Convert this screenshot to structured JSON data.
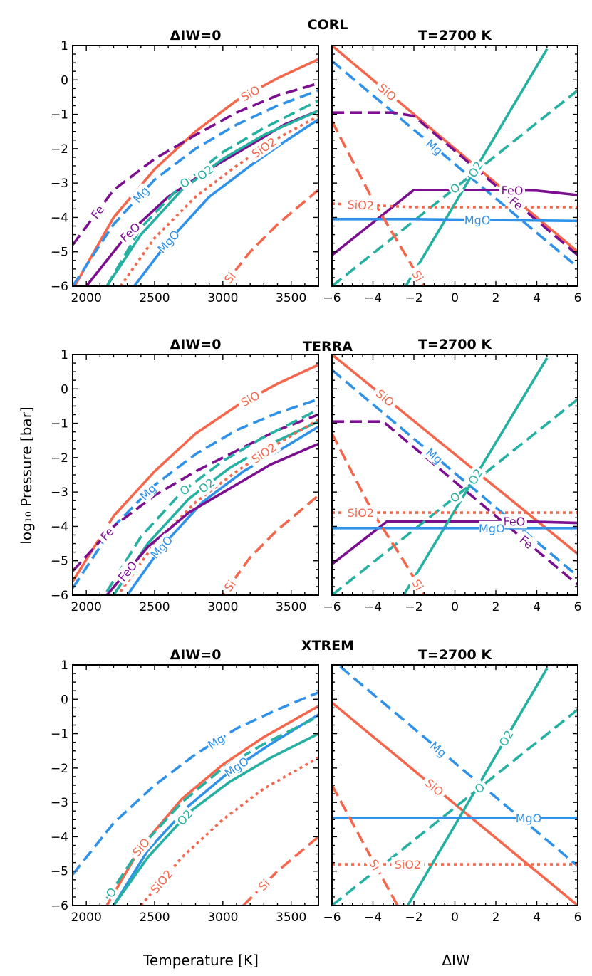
{
  "figure": {
    "ylabel": "log₁₀ Pressure [bar]",
    "xlabel_left": "Temperature [K]",
    "xlabel_right": "ΔIW"
  },
  "colors": {
    "SiO": "#f5674d",
    "SiO2": "#f5674d",
    "Si": "#f5674d",
    "Mg": "#2f92e8",
    "MgO": "#2f92e8",
    "O": "#25b0a1",
    "O2": "#25b0a1",
    "Fe": "#7b0f8f",
    "FeO": "#7b0f8f"
  },
  "chart_data": [
    {
      "group": "CORL",
      "side": "left",
      "type": "line",
      "title": "ΔIW=0",
      "xlabel": "Temperature [K]",
      "ylabel": "log₁₀ Pressure [bar]",
      "xlim": [
        1900,
        3700
      ],
      "ylim": [
        -6,
        1
      ],
      "xticks": [
        2000,
        2500,
        3000,
        3500
      ],
      "yticks": [
        1,
        0,
        -1,
        -2,
        -3,
        -4,
        -5,
        -6
      ],
      "series": [
        {
          "name": "SiO",
          "style": "solid",
          "x": [
            1900,
            2200,
            2500,
            2800,
            3100,
            3400,
            3700
          ],
          "y": [
            -6.1,
            -4.0,
            -2.6,
            -1.5,
            -0.6,
            0.05,
            0.6
          ],
          "label_at": 3200
        },
        {
          "name": "Fe",
          "style": "dashed",
          "x": [
            1900,
            2200,
            2500,
            2800,
            3100,
            3400,
            3700
          ],
          "y": [
            -4.8,
            -3.2,
            -2.3,
            -1.6,
            -0.95,
            -0.45,
            -0.1
          ],
          "label_at": 2080
        },
        {
          "name": "Mg",
          "style": "dashed",
          "x": [
            1900,
            2200,
            2500,
            2800,
            3100,
            3400,
            3700
          ],
          "y": [
            -6.0,
            -4.2,
            -2.9,
            -2.0,
            -1.3,
            -0.75,
            -0.3
          ],
          "label_at": 2400
        },
        {
          "name": "FeO",
          "style": "solid",
          "x": [
            2000,
            2300,
            2600,
            2900,
            3200,
            3450,
            3700
          ],
          "y": [
            -6.0,
            -4.5,
            -3.4,
            -2.6,
            -1.9,
            -1.3,
            -0.9
          ],
          "label_at": 2320
        },
        {
          "name": "O",
          "style": "dashed",
          "x": [
            2150,
            2400,
            2700,
            3000,
            3300,
            3700
          ],
          "y": [
            -6.0,
            -4.3,
            -3.05,
            -2.1,
            -1.4,
            -0.6
          ],
          "label_at": 2720
        },
        {
          "name": "O2",
          "style": "solid",
          "x": [
            2150,
            2400,
            2700,
            3000,
            3300,
            3700
          ],
          "y": [
            -6.0,
            -4.5,
            -3.2,
            -2.3,
            -1.6,
            -0.9
          ],
          "label_at": 2870
        },
        {
          "name": "SiO2",
          "style": "dotted",
          "x": [
            2250,
            2500,
            2800,
            3100,
            3400,
            3700
          ],
          "y": [
            -6.0,
            -4.6,
            -3.4,
            -2.5,
            -1.7,
            -1.05
          ],
          "label_at": 3300
        },
        {
          "name": "MgO",
          "style": "solid",
          "x": [
            2350,
            2600,
            2900,
            3200,
            3450,
            3700
          ],
          "y": [
            -6.0,
            -4.7,
            -3.4,
            -2.5,
            -1.8,
            -1.15
          ],
          "label_at": 2600
        },
        {
          "name": "Si",
          "style": "dashed",
          "x": [
            3000,
            3200,
            3400,
            3700
          ],
          "y": [
            -6.0,
            -5.0,
            -4.2,
            -3.2
          ],
          "label_at": 3050
        }
      ]
    },
    {
      "group": "CORL",
      "side": "right",
      "type": "line",
      "title": "T=2700 K",
      "xlabel": "ΔIW",
      "ylabel": "log₁₀ Pressure [bar]",
      "xlim": [
        -6,
        6
      ],
      "ylim": [
        -6,
        1
      ],
      "xticks": [
        -6,
        -4,
        -2,
        0,
        2,
        4,
        6
      ],
      "yticks": [
        1,
        0,
        -1,
        -2,
        -3,
        -4,
        -5,
        -6
      ],
      "series": [
        {
          "name": "SiO",
          "style": "solid",
          "x": [
            -6,
            6
          ],
          "y": [
            1.0,
            -5.0
          ],
          "label_at": -3.3
        },
        {
          "name": "Mg",
          "style": "dashed",
          "x": [
            -6,
            6
          ],
          "y": [
            0.55,
            -5.45
          ],
          "label_at": -1.0
        },
        {
          "name": "Fe",
          "style": "dashed",
          "x": [
            -6,
            -3,
            -2,
            6
          ],
          "y": [
            -0.95,
            -0.95,
            -1.05,
            -5.1
          ],
          "label_at": 3.0
        },
        {
          "name": "FeO",
          "style": "solid",
          "x": [
            -6,
            -2,
            2,
            4,
            6
          ],
          "y": [
            -5.1,
            -3.2,
            -3.2,
            -3.22,
            -3.35
          ],
          "label_at": 2.8
        },
        {
          "name": "O2",
          "style": "solid",
          "x": [
            -2.4,
            4.5
          ],
          "y": [
            -6.0,
            0.9
          ],
          "label_at": 1.0
        },
        {
          "name": "O",
          "style": "dashed",
          "x": [
            -6,
            6
          ],
          "y": [
            -6.0,
            -0.3
          ],
          "label_at": 0.0
        },
        {
          "name": "SiO2",
          "style": "dotted",
          "x": [
            -6,
            -2,
            6
          ],
          "y": [
            -3.6,
            -3.7,
            -3.7
          ],
          "label_at": -4.6
        },
        {
          "name": "MgO",
          "style": "solid",
          "x": [
            -6,
            -2,
            6
          ],
          "y": [
            -4.05,
            -4.05,
            -4.1
          ],
          "label_at": 1.1
        },
        {
          "name": "Si",
          "style": "dashed",
          "x": [
            -6,
            -4,
            -2.5,
            -1.5
          ],
          "y": [
            -1.2,
            -3.5,
            -5.0,
            -6.0
          ],
          "label_at": -1.8
        }
      ]
    },
    {
      "group": "TERRA",
      "side": "left",
      "type": "line",
      "title": "ΔIW=0",
      "xlabel": "Temperature [K]",
      "ylabel": "log₁₀ Pressure [bar]",
      "xlim": [
        1900,
        3700
      ],
      "ylim": [
        -6,
        1
      ],
      "xticks": [
        2000,
        2500,
        3000,
        3500
      ],
      "yticks": [
        1,
        0,
        -1,
        -2,
        -3,
        -4,
        -5,
        -6
      ],
      "series": [
        {
          "name": "SiO",
          "style": "solid",
          "x": [
            1900,
            2200,
            2500,
            2800,
            3100,
            3400,
            3700
          ],
          "y": [
            -5.6,
            -3.7,
            -2.4,
            -1.3,
            -0.5,
            0.15,
            0.7
          ],
          "label_at": 3200
        },
        {
          "name": "Mg",
          "style": "dashed",
          "x": [
            1900,
            2200,
            2500,
            2800,
            3100,
            3400,
            3700
          ],
          "y": [
            -5.8,
            -4.0,
            -2.8,
            -1.9,
            -1.2,
            -0.7,
            -0.3
          ],
          "label_at": 2450
        },
        {
          "name": "Fe",
          "style": "dashed",
          "x": [
            1900,
            2200,
            2500,
            2800,
            3100,
            3400,
            3700
          ],
          "y": [
            -5.3,
            -4.0,
            -3.1,
            -2.4,
            -1.8,
            -1.2,
            -0.75
          ],
          "label_at": 2150
        },
        {
          "name": "O",
          "style": "dashed",
          "x": [
            2150,
            2400,
            2700,
            3000,
            3300,
            3700
          ],
          "y": [
            -5.9,
            -4.3,
            -3.0,
            -2.1,
            -1.4,
            -0.6
          ],
          "label_at": 2720
        },
        {
          "name": "O2",
          "style": "solid",
          "x": [
            2200,
            2450,
            2750,
            3050,
            3350,
            3700
          ],
          "y": [
            -6.0,
            -4.5,
            -3.2,
            -2.3,
            -1.6,
            -0.95
          ],
          "label_at": 2880
        },
        {
          "name": "SiO2",
          "style": "dotted",
          "x": [
            2250,
            2500,
            2800,
            3100,
            3400,
            3700
          ],
          "y": [
            -5.9,
            -4.5,
            -3.3,
            -2.4,
            -1.6,
            -0.9
          ],
          "label_at": 3300
        },
        {
          "name": "MgO",
          "style": "solid",
          "x": [
            2300,
            2550,
            2850,
            3150,
            3450,
            3700
          ],
          "y": [
            -6.0,
            -4.6,
            -3.3,
            -2.4,
            -1.7,
            -1.1
          ],
          "label_at": 2550
        },
        {
          "name": "FeO",
          "style": "solid",
          "x": [
            2150,
            2450,
            2750,
            3050,
            3350,
            3700
          ],
          "y": [
            -6.0,
            -4.6,
            -3.6,
            -2.9,
            -2.2,
            -1.6
          ],
          "label_at": 2300
        },
        {
          "name": "Si",
          "style": "dashed",
          "x": [
            3000,
            3200,
            3400,
            3700
          ],
          "y": [
            -6.0,
            -4.9,
            -4.1,
            -3.1
          ],
          "label_at": 3050
        }
      ]
    },
    {
      "group": "TERRA",
      "side": "right",
      "type": "line",
      "title": "T=2700 K",
      "xlabel": "ΔIW",
      "ylabel": "log₁₀ Pressure [bar]",
      "xlim": [
        -6,
        6
      ],
      "ylim": [
        -6,
        1
      ],
      "xticks": [
        -6,
        -4,
        -2,
        0,
        2,
        4,
        6
      ],
      "yticks": [
        1,
        0,
        -1,
        -2,
        -3,
        -4,
        -5,
        -6
      ],
      "series": [
        {
          "name": "SiO",
          "style": "solid",
          "x": [
            -6,
            6
          ],
          "y": [
            1.0,
            -4.8
          ],
          "label_at": -3.4
        },
        {
          "name": "Mg",
          "style": "dashed",
          "x": [
            -6,
            6
          ],
          "y": [
            0.55,
            -5.45
          ],
          "label_at": -1.0
        },
        {
          "name": "Fe",
          "style": "dashed",
          "x": [
            -6,
            -3.5,
            6
          ],
          "y": [
            -0.95,
            -0.95,
            -5.7
          ],
          "label_at": 3.5
        },
        {
          "name": "FeO",
          "style": "solid",
          "x": [
            -6,
            -3.3,
            3,
            6
          ],
          "y": [
            -5.1,
            -3.85,
            -3.85,
            -3.9
          ],
          "label_at": 2.9
        },
        {
          "name": "O2",
          "style": "solid",
          "x": [
            -2.5,
            4.5
          ],
          "y": [
            -6.0,
            0.9
          ],
          "label_at": 1.0
        },
        {
          "name": "O",
          "style": "dashed",
          "x": [
            -6,
            6
          ],
          "y": [
            -6.0,
            -0.3
          ],
          "label_at": 0.0
        },
        {
          "name": "SiO2",
          "style": "dotted",
          "x": [
            -6,
            6
          ],
          "y": [
            -3.6,
            -3.6
          ],
          "label_at": -4.6
        },
        {
          "name": "MgO",
          "style": "solid",
          "x": [
            -6,
            6
          ],
          "y": [
            -4.05,
            -4.05
          ],
          "label_at": 1.8
        },
        {
          "name": "Si",
          "style": "dashed",
          "x": [
            -6,
            -4,
            -2.5,
            -1.5
          ],
          "y": [
            -1.3,
            -3.6,
            -5.0,
            -6.0
          ],
          "label_at": -1.8
        }
      ]
    },
    {
      "group": "XTREM",
      "side": "left",
      "type": "line",
      "title": "ΔIW=0",
      "xlabel": "Temperature [K]",
      "ylabel": "log₁₀ Pressure [bar]",
      "xlim": [
        1900,
        3700
      ],
      "ylim": [
        -6,
        1
      ],
      "xticks": [
        2000,
        2500,
        3000,
        3500
      ],
      "yticks": [
        1,
        0,
        -1,
        -2,
        -3,
        -4,
        -5,
        -6
      ],
      "series": [
        {
          "name": "Mg",
          "style": "dashed",
          "x": [
            1900,
            2200,
            2500,
            2800,
            3100,
            3400,
            3700
          ],
          "y": [
            -5.1,
            -3.6,
            -2.5,
            -1.6,
            -0.85,
            -0.3,
            0.2
          ],
          "label_at": 2950
        },
        {
          "name": "SiO",
          "style": "solid",
          "x": [
            2150,
            2400,
            2700,
            3000,
            3300,
            3700
          ],
          "y": [
            -6.0,
            -4.3,
            -2.9,
            -1.9,
            -1.1,
            -0.2
          ],
          "label_at": 2400
        },
        {
          "name": "MgO",
          "style": "solid",
          "x": [
            2200,
            2450,
            2750,
            3050,
            3350,
            3700
          ],
          "y": [
            -6.0,
            -4.4,
            -3.1,
            -2.1,
            -1.3,
            -0.45
          ],
          "label_at": 3100
        },
        {
          "name": "O",
          "style": "dashed",
          "x": [
            2150,
            2400,
            2700,
            3000,
            3300,
            3700
          ],
          "y": [
            -5.8,
            -4.3,
            -3.0,
            -2.0,
            -1.3,
            -0.5
          ],
          "label_at": 2180
        },
        {
          "name": "O2",
          "style": "solid",
          "x": [
            2200,
            2450,
            2750,
            3050,
            3350,
            3700
          ],
          "y": [
            -6.0,
            -4.6,
            -3.3,
            -2.4,
            -1.7,
            -1.0
          ],
          "label_at": 2720
        },
        {
          "name": "SiO2",
          "style": "dotted",
          "x": [
            2400,
            2700,
            3000,
            3300,
            3700
          ],
          "y": [
            -6.0,
            -4.6,
            -3.5,
            -2.6,
            -1.7
          ],
          "label_at": 2550
        },
        {
          "name": "Si",
          "style": "dashed",
          "x": [
            3150,
            3400,
            3700
          ],
          "y": [
            -6.0,
            -5.0,
            -4.0
          ],
          "label_at": 3300
        }
      ]
    },
    {
      "group": "XTREM",
      "side": "right",
      "type": "line",
      "title": "T=2700 K",
      "xlabel": "ΔIW",
      "ylabel": "log₁₀ Pressure [bar]",
      "xlim": [
        -6,
        6
      ],
      "ylim": [
        -6,
        1
      ],
      "xticks": [
        -6,
        -4,
        -2,
        0,
        2,
        4,
        6
      ],
      "yticks": [
        1,
        0,
        -1,
        -2,
        -3,
        -4,
        -5,
        -6
      ],
      "series": [
        {
          "name": "Mg",
          "style": "dashed",
          "x": [
            -5.6,
            6
          ],
          "y": [
            0.95,
            -4.85
          ],
          "label_at": -0.8
        },
        {
          "name": "SiO",
          "style": "solid",
          "x": [
            -6,
            6
          ],
          "y": [
            -0.1,
            -6.0
          ],
          "label_at": -1.0
        },
        {
          "name": "O2",
          "style": "solid",
          "x": [
            -2.3,
            4.5
          ],
          "y": [
            -6.0,
            0.9
          ],
          "label_at": 2.5
        },
        {
          "name": "O",
          "style": "dashed",
          "x": [
            -6,
            6
          ],
          "y": [
            -6.0,
            -0.3
          ],
          "label_at": 1.2
        },
        {
          "name": "MgO",
          "style": "solid",
          "x": [
            -6,
            6
          ],
          "y": [
            -3.45,
            -3.45
          ],
          "label_at": 3.6
        },
        {
          "name": "SiO2",
          "style": "dotted",
          "x": [
            -6,
            6
          ],
          "y": [
            -4.8,
            -4.8
          ],
          "label_at": -2.3
        },
        {
          "name": "Si",
          "style": "dashed",
          "x": [
            -6,
            -5,
            -4,
            -2.8
          ],
          "y": [
            -2.5,
            -3.6,
            -4.7,
            -6.0
          ],
          "label_at": -3.9
        }
      ]
    }
  ],
  "groups": [
    "CORL",
    "TERRA",
    "XTREM"
  ]
}
